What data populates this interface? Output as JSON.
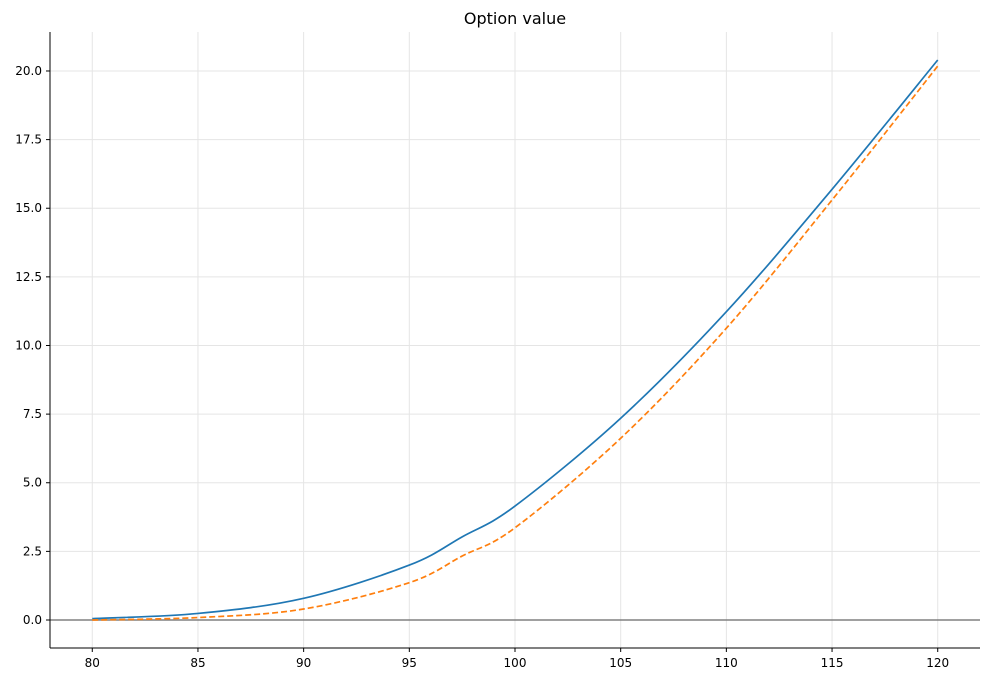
{
  "chart_data": {
    "type": "line",
    "title": "Option value",
    "xlabel": "",
    "ylabel": "",
    "xlim": [
      78,
      122
    ],
    "ylim": [
      -1.02,
      21.42
    ],
    "grid": true,
    "legend": "none",
    "xticks": [
      80,
      85,
      90,
      95,
      100,
      105,
      110,
      115,
      120
    ],
    "xtick_labels": [
      "80",
      "85",
      "90",
      "95",
      "100",
      "105",
      "110",
      "115",
      "120"
    ],
    "yticks": [
      0,
      2.5,
      5,
      7.5,
      10,
      12.5,
      15,
      17.5,
      20
    ],
    "ytick_labels": [
      "0.0",
      "2.5",
      "5.0",
      "7.5",
      "10.0",
      "12.5",
      "15.0",
      "17.5",
      "20.0"
    ],
    "hline": {
      "y": 0,
      "color": "#808080"
    },
    "x": [
      80,
      85,
      90,
      95,
      97.5,
      100,
      105,
      110,
      115,
      120
    ],
    "series": [
      {
        "values": [
          0.05,
          0.24,
          0.79,
          2.0,
          3.03,
          4.15,
          7.35,
          11.23,
          15.69,
          20.4
        ],
        "color": "#1f77b4",
        "style": "solid"
      },
      {
        "values": [
          0.0,
          0.09,
          0.4,
          1.36,
          2.33,
          3.36,
          6.62,
          10.63,
          15.3,
          20.18
        ],
        "color": "#ff7f0e",
        "style": "dashed"
      }
    ]
  }
}
